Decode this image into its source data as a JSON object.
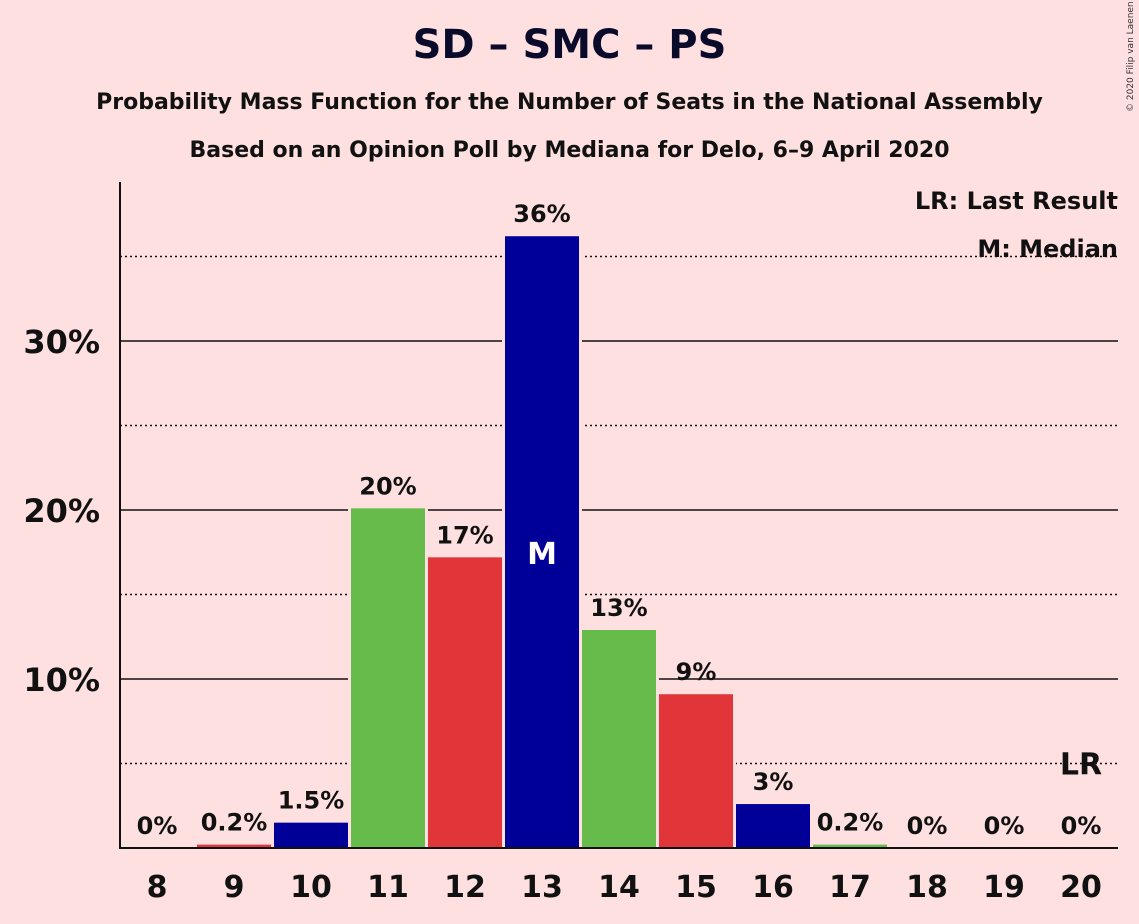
{
  "header": {
    "title": "SD – SMC – PS",
    "subtitle1": "Probability Mass Function for the Number of Seats in the National Assembly",
    "subtitle2": "Based on an Opinion Poll by Mediana for Delo, 6–9 April 2020",
    "copyright": "© 2020 Filip van Laenen"
  },
  "legend": {
    "last_result": "LR: Last Result",
    "median": "M: Median"
  },
  "colors": {
    "background": "#ffe0e0",
    "blue": "#000099",
    "green": "#66bb4a",
    "red": "#e03539"
  },
  "chart_data": {
    "type": "bar",
    "categories": [
      "8",
      "9",
      "10",
      "11",
      "12",
      "13",
      "14",
      "15",
      "16",
      "17",
      "18",
      "19",
      "20"
    ],
    "values": [
      0,
      0.2,
      1.5,
      20,
      17,
      36,
      13,
      9,
      3,
      0.2,
      0,
      0,
      0
    ],
    "plotted_values": [
      0,
      0.2,
      1.5,
      20.1,
      17.2,
      36.2,
      12.9,
      9.1,
      2.6,
      0.2,
      0,
      0,
      0
    ],
    "labels": [
      "0%",
      "0.2%",
      "1.5%",
      "20%",
      "17%",
      "36%",
      "13%",
      "9%",
      "3%",
      "0.2%",
      "0%",
      "0%",
      "0%"
    ],
    "bar_colors": [
      "blue",
      "red",
      "blue",
      "green",
      "red",
      "blue",
      "green",
      "red",
      "blue",
      "green",
      "red",
      "blue",
      "green"
    ],
    "ylim": [
      0,
      39.5
    ],
    "yticks": [
      10,
      20,
      30
    ],
    "ytick_labels": [
      "10%",
      "20%",
      "30%"
    ],
    "minor_gridlines": [
      5,
      15,
      25,
      35
    ],
    "median_seat": "13",
    "median_marker": "M",
    "last_result_seat": "20",
    "last_result_level": 5,
    "last_result_marker": "LR",
    "legend_position": "top-right"
  }
}
